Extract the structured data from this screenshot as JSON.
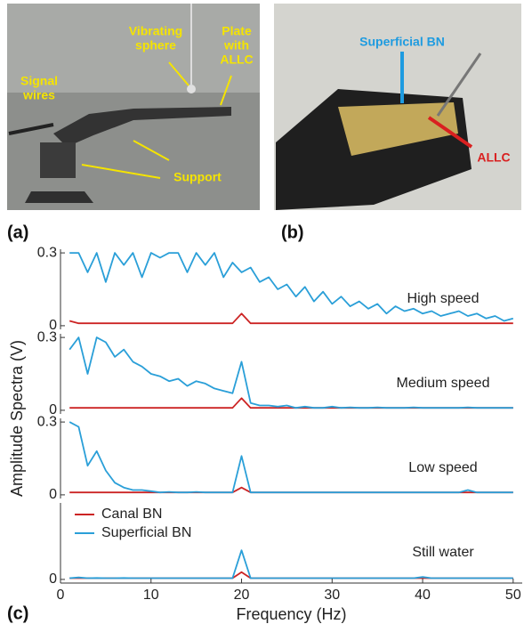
{
  "figure": {
    "photo_a": {
      "panel": "(a)",
      "labels": [
        [
          "Signal",
          "wires"
        ],
        [
          "Vibrating",
          "sphere"
        ],
        [
          "Plate",
          "with",
          "ALLC"
        ],
        [
          "Support"
        ]
      ]
    },
    "photo_b": {
      "panel": "(b)",
      "labels": [
        [
          "Superficial BN"
        ],
        [
          "ALLC"
        ]
      ]
    },
    "panel_c": "(c)"
  },
  "chart_data": [
    {
      "type": "line",
      "label": "High speed",
      "ylabel": "Amplitude Spectra (V)",
      "x": [
        1,
        2,
        3,
        4,
        5,
        6,
        7,
        8,
        9,
        10,
        11,
        12,
        13,
        14,
        15,
        16,
        17,
        18,
        19,
        20,
        21,
        22,
        23,
        24,
        25,
        26,
        27,
        28,
        29,
        30,
        31,
        32,
        33,
        34,
        35,
        36,
        37,
        38,
        39,
        40,
        41,
        42,
        43,
        44,
        45,
        46,
        47,
        48,
        49,
        50
      ],
      "xlim": [
        0,
        51
      ],
      "ylim": [
        -0.015,
        0.315
      ],
      "yticks": [
        0.3,
        0
      ],
      "series": [
        {
          "color": "#cc2424",
          "values": [
            0.02,
            0.01,
            0.01,
            0.01,
            0.01,
            0.01,
            0.01,
            0.01,
            0.01,
            0.01,
            0.01,
            0.01,
            0.01,
            0.01,
            0.01,
            0.01,
            0.01,
            0.01,
            0.01,
            0.05,
            0.01,
            0.01,
            0.01,
            0.01,
            0.01,
            0.01,
            0.01,
            0.01,
            0.01,
            0.01,
            0.01,
            0.01,
            0.01,
            0.01,
            0.01,
            0.01,
            0.01,
            0.01,
            0.01,
            0.01,
            0.01,
            0.01,
            0.01,
            0.01,
            0.01,
            0.01,
            0.01,
            0.01,
            0.01,
            0.01
          ]
        },
        {
          "color": "#2a9fd8",
          "values": [
            0.3,
            0.3,
            0.22,
            0.3,
            0.18,
            0.3,
            0.25,
            0.3,
            0.2,
            0.3,
            0.28,
            0.3,
            0.3,
            0.22,
            0.3,
            0.25,
            0.3,
            0.2,
            0.26,
            0.22,
            0.24,
            0.18,
            0.2,
            0.15,
            0.17,
            0.12,
            0.16,
            0.1,
            0.14,
            0.09,
            0.12,
            0.08,
            0.1,
            0.07,
            0.09,
            0.05,
            0.08,
            0.06,
            0.07,
            0.05,
            0.06,
            0.04,
            0.05,
            0.06,
            0.04,
            0.05,
            0.03,
            0.04,
            0.02,
            0.03
          ]
        }
      ]
    },
    {
      "type": "line",
      "label": "Medium speed",
      "x": [
        1,
        2,
        3,
        4,
        5,
        6,
        7,
        8,
        9,
        10,
        11,
        12,
        13,
        14,
        15,
        16,
        17,
        18,
        19,
        20,
        21,
        22,
        23,
        24,
        25,
        26,
        27,
        28,
        29,
        30,
        31,
        32,
        33,
        34,
        35,
        36,
        37,
        38,
        39,
        40,
        41,
        42,
        43,
        44,
        45,
        46,
        47,
        48,
        49,
        50
      ],
      "xlim": [
        0,
        51
      ],
      "ylim": [
        -0.015,
        0.315
      ],
      "yticks": [
        0.3,
        0
      ],
      "series": [
        {
          "color": "#cc2424",
          "values": [
            0.01,
            0.01,
            0.01,
            0.01,
            0.01,
            0.01,
            0.01,
            0.01,
            0.01,
            0.01,
            0.01,
            0.01,
            0.01,
            0.01,
            0.01,
            0.01,
            0.01,
            0.01,
            0.01,
            0.05,
            0.01,
            0.01,
            0.01,
            0.01,
            0.01,
            0.01,
            0.01,
            0.01,
            0.01,
            0.01,
            0.01,
            0.01,
            0.01,
            0.01,
            0.01,
            0.01,
            0.01,
            0.01,
            0.01,
            0.01,
            0.01,
            0.01,
            0.01,
            0.01,
            0.01,
            0.01,
            0.01,
            0.01,
            0.01,
            0.01
          ]
        },
        {
          "color": "#2a9fd8",
          "values": [
            0.25,
            0.3,
            0.15,
            0.3,
            0.28,
            0.22,
            0.25,
            0.2,
            0.18,
            0.15,
            0.14,
            0.12,
            0.13,
            0.1,
            0.12,
            0.11,
            0.09,
            0.08,
            0.07,
            0.2,
            0.03,
            0.02,
            0.02,
            0.015,
            0.02,
            0.01,
            0.015,
            0.01,
            0.01,
            0.015,
            0.01,
            0.012,
            0.01,
            0.01,
            0.012,
            0.01,
            0.01,
            0.01,
            0.012,
            0.01,
            0.01,
            0.01,
            0.01,
            0.01,
            0.012,
            0.01,
            0.01,
            0.01,
            0.01,
            0.01
          ]
        }
      ]
    },
    {
      "type": "line",
      "label": "Low speed",
      "x": [
        1,
        2,
        3,
        4,
        5,
        6,
        7,
        8,
        9,
        10,
        11,
        12,
        13,
        14,
        15,
        16,
        17,
        18,
        19,
        20,
        21,
        22,
        23,
        24,
        25,
        26,
        27,
        28,
        29,
        30,
        31,
        32,
        33,
        34,
        35,
        36,
        37,
        38,
        39,
        40,
        41,
        42,
        43,
        44,
        45,
        46,
        47,
        48,
        49,
        50
      ],
      "xlim": [
        0,
        51
      ],
      "ylim": [
        -0.015,
        0.315
      ],
      "yticks": [
        0.3,
        0
      ],
      "series": [
        {
          "color": "#cc2424",
          "values": [
            0.01,
            0.01,
            0.01,
            0.01,
            0.01,
            0.01,
            0.01,
            0.01,
            0.01,
            0.01,
            0.01,
            0.01,
            0.01,
            0.01,
            0.01,
            0.01,
            0.01,
            0.01,
            0.01,
            0.03,
            0.01,
            0.01,
            0.01,
            0.01,
            0.01,
            0.01,
            0.01,
            0.01,
            0.01,
            0.01,
            0.01,
            0.01,
            0.01,
            0.01,
            0.01,
            0.01,
            0.01,
            0.01,
            0.01,
            0.01,
            0.01,
            0.01,
            0.01,
            0.01,
            0.01,
            0.01,
            0.01,
            0.01,
            0.01,
            0.01
          ]
        },
        {
          "color": "#2a9fd8",
          "values": [
            0.3,
            0.28,
            0.12,
            0.18,
            0.1,
            0.05,
            0.03,
            0.02,
            0.02,
            0.015,
            0.01,
            0.012,
            0.01,
            0.01,
            0.012,
            0.01,
            0.01,
            0.01,
            0.01,
            0.16,
            0.01,
            0.01,
            0.01,
            0.01,
            0.01,
            0.01,
            0.01,
            0.01,
            0.01,
            0.01,
            0.01,
            0.01,
            0.01,
            0.01,
            0.01,
            0.01,
            0.01,
            0.01,
            0.01,
            0.01,
            0.01,
            0.01,
            0.01,
            0.01,
            0.02,
            0.01,
            0.01,
            0.01,
            0.01,
            0.01
          ]
        }
      ]
    },
    {
      "type": "line",
      "label": "Still water",
      "xlabel": "Frequency (Hz)",
      "x": [
        1,
        2,
        3,
        4,
        5,
        6,
        7,
        8,
        9,
        10,
        11,
        12,
        13,
        14,
        15,
        16,
        17,
        18,
        19,
        20,
        21,
        22,
        23,
        24,
        25,
        26,
        27,
        28,
        29,
        30,
        31,
        32,
        33,
        34,
        35,
        36,
        37,
        38,
        39,
        40,
        41,
        42,
        43,
        44,
        45,
        46,
        47,
        48,
        49,
        50
      ],
      "xlim": [
        0,
        51
      ],
      "ylim": [
        -0.015,
        0.315
      ],
      "yticks": [
        0
      ],
      "xticks": [
        0,
        10,
        20,
        30,
        40,
        50
      ],
      "series": [
        {
          "name": "Canal BN",
          "color": "#cc2424",
          "values": [
            0.005,
            0.005,
            0.005,
            0.005,
            0.005,
            0.005,
            0.005,
            0.005,
            0.005,
            0.005,
            0.005,
            0.005,
            0.005,
            0.005,
            0.005,
            0.005,
            0.005,
            0.005,
            0.005,
            0.03,
            0.005,
            0.005,
            0.005,
            0.005,
            0.005,
            0.005,
            0.005,
            0.005,
            0.005,
            0.005,
            0.005,
            0.005,
            0.005,
            0.005,
            0.005,
            0.005,
            0.005,
            0.005,
            0.005,
            0.005,
            0.005,
            0.005,
            0.005,
            0.005,
            0.005,
            0.005,
            0.005,
            0.005,
            0.005,
            0.005
          ]
        },
        {
          "name": "Superficial BN",
          "color": "#2a9fd8",
          "values": [
            0.005,
            0.008,
            0.005,
            0.006,
            0.005,
            0.005,
            0.006,
            0.005,
            0.005,
            0.005,
            0.005,
            0.005,
            0.005,
            0.005,
            0.005,
            0.005,
            0.005,
            0.005,
            0.005,
            0.12,
            0.005,
            0.005,
            0.005,
            0.005,
            0.005,
            0.005,
            0.005,
            0.005,
            0.005,
            0.005,
            0.005,
            0.005,
            0.005,
            0.005,
            0.005,
            0.005,
            0.005,
            0.005,
            0.005,
            0.01,
            0.005,
            0.005,
            0.005,
            0.005,
            0.005,
            0.005,
            0.005,
            0.005,
            0.005,
            0.005
          ]
        }
      ]
    }
  ]
}
